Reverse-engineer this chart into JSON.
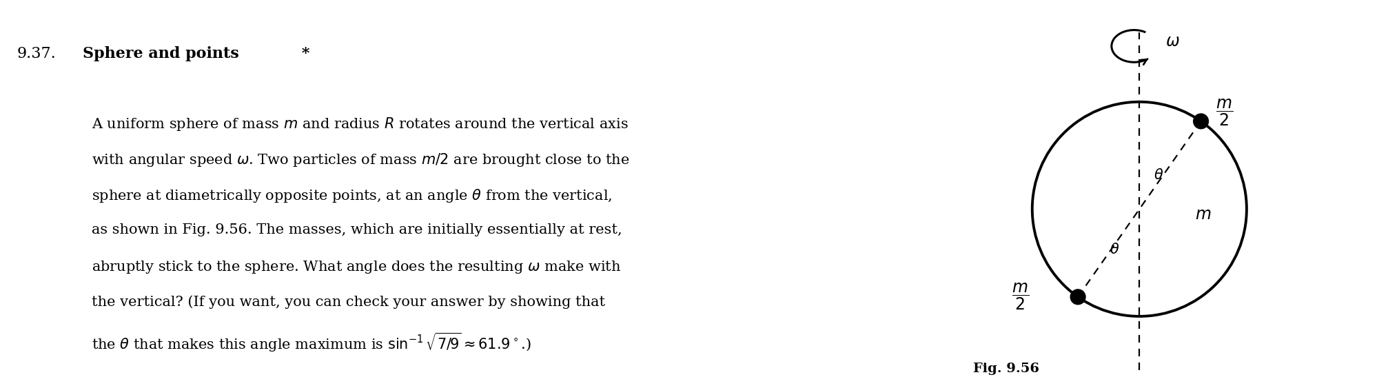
{
  "fig_width": 20.14,
  "fig_height": 5.6,
  "dpi": 100,
  "background_color": "#ffffff",
  "problem_number": "9.37.",
  "title_bold": "Sphere and points",
  "title_star": " *",
  "body_lines": [
    "A uniform sphere of mass $m$ and radius $R$ rotates around the vertical axis",
    "with angular speed $\\omega$. Two particles of mass $m/2$ are brought close to the",
    "sphere at diametrically opposite points, at an angle $\\theta$ from the vertical,",
    "as shown in Fig. 9.56. The masses, which are initially essentially at rest,",
    "abruptly stick to the sphere. What angle does the resulting $\\omega$ make with",
    "the vertical? (If you want, you can check your answer by showing that",
    "the $\\theta$ that makes this angle maximum is $\\sin^{-1}\\sqrt{7/9}\\approx 61.9^\\circ$.)"
  ],
  "fig_label": "Fig. 9.56",
  "theta_deg": 35,
  "text_color": "#000000",
  "circle_color": "#000000",
  "dashed_color": "#000000",
  "dot_color": "#000000",
  "mass_label_upper_right": "$\\dfrac{m}{2}$",
  "mass_label_lower_left": "$\\dfrac{m}{2}$",
  "sphere_label": "$m$",
  "omega_label": "$\\omega$",
  "theta_label": "$\\theta$"
}
